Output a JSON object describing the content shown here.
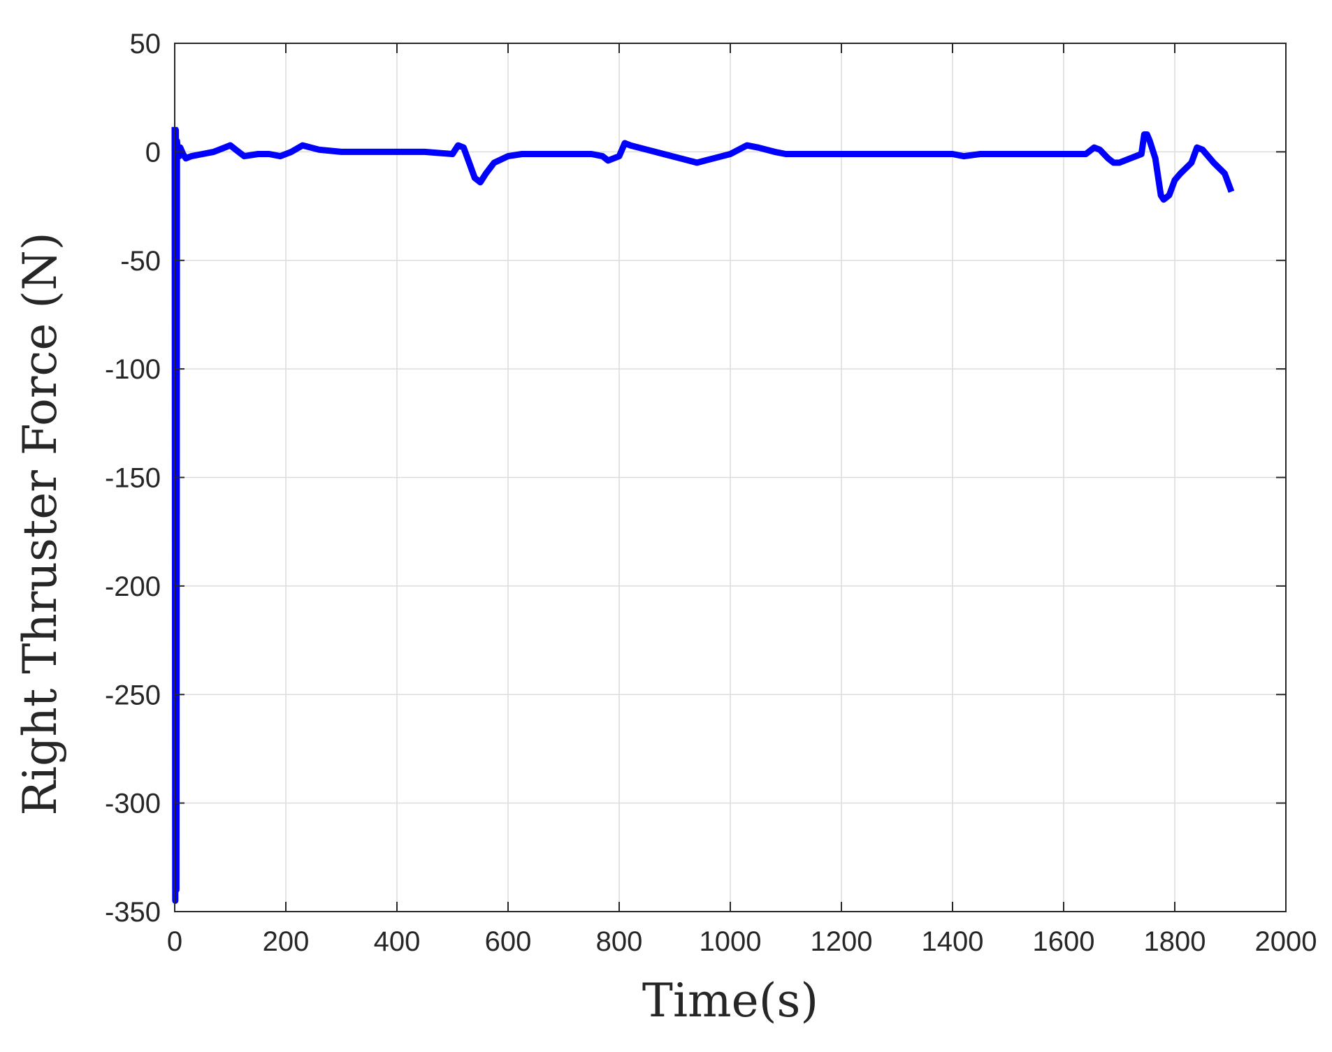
{
  "chart_data": {
    "type": "line",
    "title": "",
    "xlabel": "Time(s)",
    "ylabel": "Right Thruster Force (N)",
    "xlim": [
      0,
      2000
    ],
    "ylim": [
      -350,
      50
    ],
    "xticks": [
      0,
      200,
      400,
      600,
      800,
      1000,
      1200,
      1400,
      1600,
      1800,
      2000
    ],
    "yticks": [
      50,
      0,
      -50,
      -100,
      -150,
      -200,
      -250,
      -300,
      -350
    ],
    "grid": true,
    "line_color": "#0000ff",
    "series": [
      {
        "x": [
          0,
          1,
          2,
          3,
          4,
          6,
          8,
          10,
          15,
          20,
          30,
          50,
          70,
          90,
          100,
          110,
          125,
          150,
          170,
          190,
          210,
          230,
          260,
          300,
          350,
          400,
          450,
          500,
          510,
          520,
          530,
          540,
          550,
          560,
          575,
          600,
          625,
          650,
          700,
          750,
          770,
          780,
          790,
          800,
          810,
          820,
          850,
          880,
          910,
          940,
          970,
          1000,
          1030,
          1050,
          1080,
          1100,
          1150,
          1200,
          1300,
          1400,
          1420,
          1450,
          1500,
          1600,
          1640,
          1655,
          1665,
          1680,
          1690,
          1700,
          1720,
          1740,
          1745,
          1750,
          1755,
          1765,
          1775,
          1780,
          1790,
          1800,
          1810,
          1830,
          1840,
          1850,
          1870,
          1890,
          1900
        ],
        "values": [
          10,
          -345,
          10,
          -340,
          5,
          0,
          -2,
          2,
          -1,
          -3,
          -2,
          -1,
          0,
          2,
          3,
          1,
          -2,
          -1,
          -1,
          -2,
          0,
          3,
          1,
          0,
          0,
          0,
          0,
          -1,
          3,
          2,
          -5,
          -12,
          -14,
          -10,
          -5,
          -2,
          -1,
          -1,
          -1,
          -1,
          -2,
          -4,
          -3,
          -2,
          4,
          3,
          1,
          -1,
          -3,
          -5,
          -3,
          -1,
          3,
          2,
          0,
          -1,
          -1,
          -1,
          -1,
          -1,
          -2,
          -1,
          -1,
          -1,
          -1,
          2,
          1,
          -3,
          -5,
          -5,
          -3,
          -1,
          8,
          8,
          5,
          -3,
          -20,
          -22,
          -20,
          -13,
          -10,
          -5,
          2,
          1,
          -5,
          -10,
          -17
        ]
      }
    ]
  }
}
